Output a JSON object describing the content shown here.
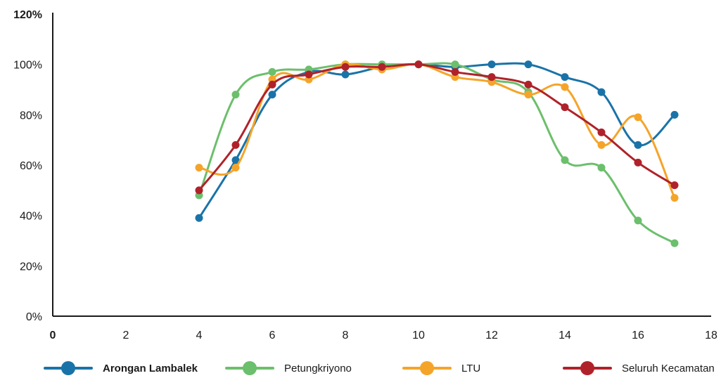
{
  "chart_data": {
    "type": "line",
    "title": "",
    "xlabel": "",
    "ylabel": "",
    "xlim": [
      0,
      18
    ],
    "ylim": [
      0,
      120
    ],
    "x_ticks": [
      "0",
      "2",
      "4",
      "6",
      "8",
      "10",
      "12",
      "14",
      "16",
      "18"
    ],
    "y_ticks": [
      "0%",
      "20%",
      "40%",
      "60%",
      "80%",
      "100%",
      "120%"
    ],
    "grid": false,
    "legend_position": "bottom",
    "x": [
      4,
      5,
      6,
      7,
      8,
      9,
      10,
      11,
      12,
      13,
      14,
      15,
      16,
      17
    ],
    "series": [
      {
        "name": "Arongan Lambalek",
        "color": "#1a73a8",
        "values": [
          39,
          62,
          88,
          97,
          96,
          99,
          100,
          99,
          100,
          100,
          95,
          89,
          68,
          80
        ]
      },
      {
        "name": "Petungkriyono",
        "color": "#6cbf6c",
        "values": [
          48,
          88,
          97,
          98,
          100,
          100,
          100,
          100,
          94,
          89,
          62,
          59,
          38,
          29
        ]
      },
      {
        "name": "LTU",
        "color": "#f5a42a",
        "values": [
          59,
          59,
          94,
          94,
          100,
          98,
          100,
          95,
          93,
          88,
          91,
          68,
          79,
          47
        ]
      },
      {
        "name": "Seluruh Kecamatan",
        "color": "#b0222a",
        "values": [
          50,
          68,
          92,
          96,
          99,
          99,
          100,
          97,
          95,
          92,
          83,
          73,
          61,
          52
        ]
      }
    ]
  }
}
